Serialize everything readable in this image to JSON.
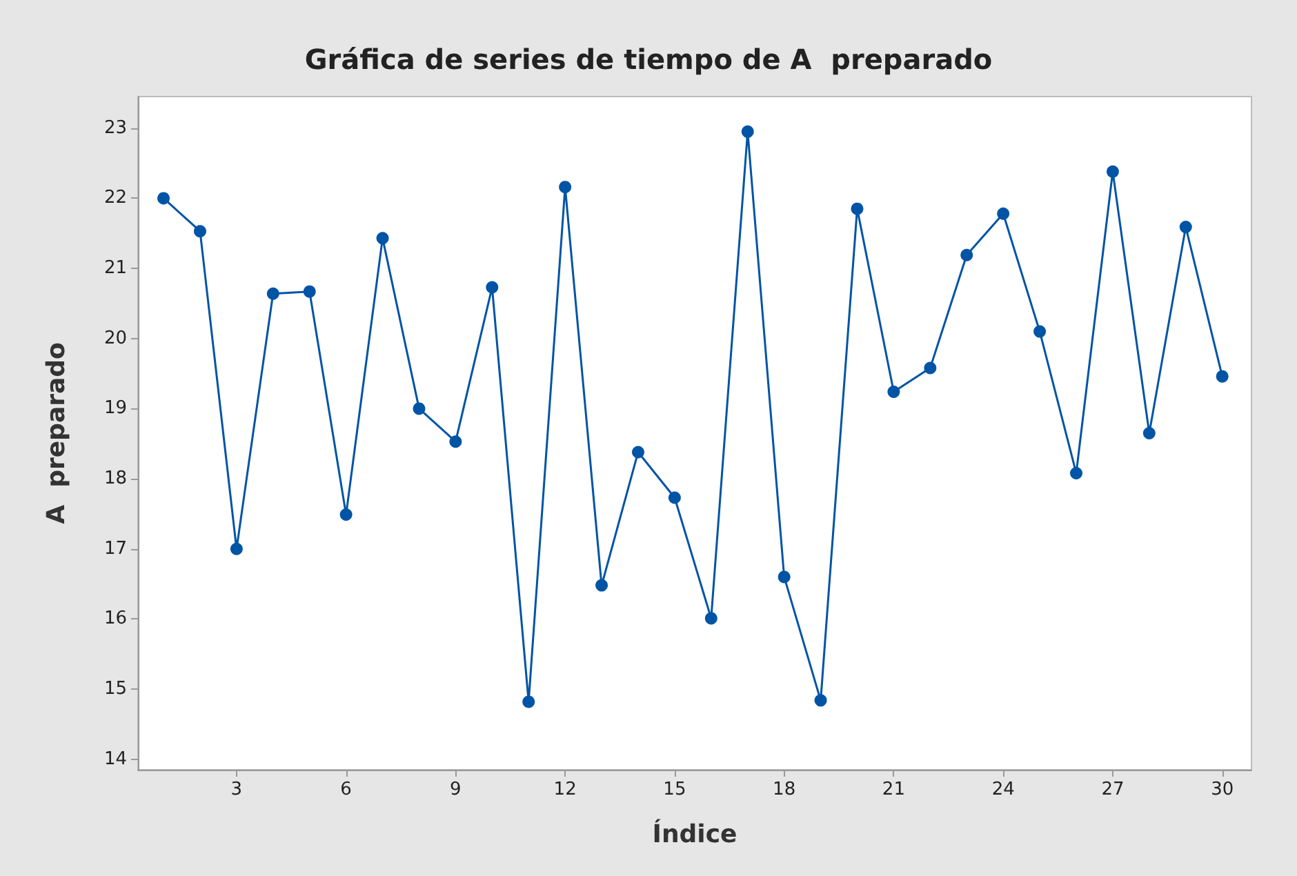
{
  "chart_data": {
    "type": "line",
    "title": "Gráfica de series de tiempo de A  preparado",
    "xlabel": "Índice",
    "ylabel": "A  preparado",
    "x": [
      1,
      2,
      3,
      4,
      5,
      6,
      7,
      8,
      9,
      10,
      11,
      12,
      13,
      14,
      15,
      16,
      17,
      18,
      19,
      20,
      21,
      22,
      23,
      24,
      25,
      26,
      27,
      28,
      29,
      30
    ],
    "series": [
      {
        "color": "#0054a6",
        "values": [
          22.0,
          21.53,
          17.0,
          20.64,
          20.67,
          17.49,
          21.43,
          19.0,
          18.53,
          20.73,
          14.82,
          22.16,
          16.48,
          18.38,
          17.73,
          16.01,
          22.95,
          16.6,
          14.84,
          21.85,
          19.24,
          19.58,
          21.19,
          21.78,
          20.1,
          18.08,
          22.38,
          18.65,
          21.59,
          19.46
        ]
      }
    ],
    "xlim": [
      0.3,
      30.8
    ],
    "xticks": [
      3,
      6,
      9,
      12,
      15,
      18,
      21,
      24,
      27,
      30
    ],
    "ylim": [
      13.85,
      23.45
    ],
    "yticks": [
      14,
      15,
      16,
      17,
      18,
      19,
      20,
      21,
      22,
      23
    ],
    "marker": "circle",
    "line_style": "solid"
  }
}
